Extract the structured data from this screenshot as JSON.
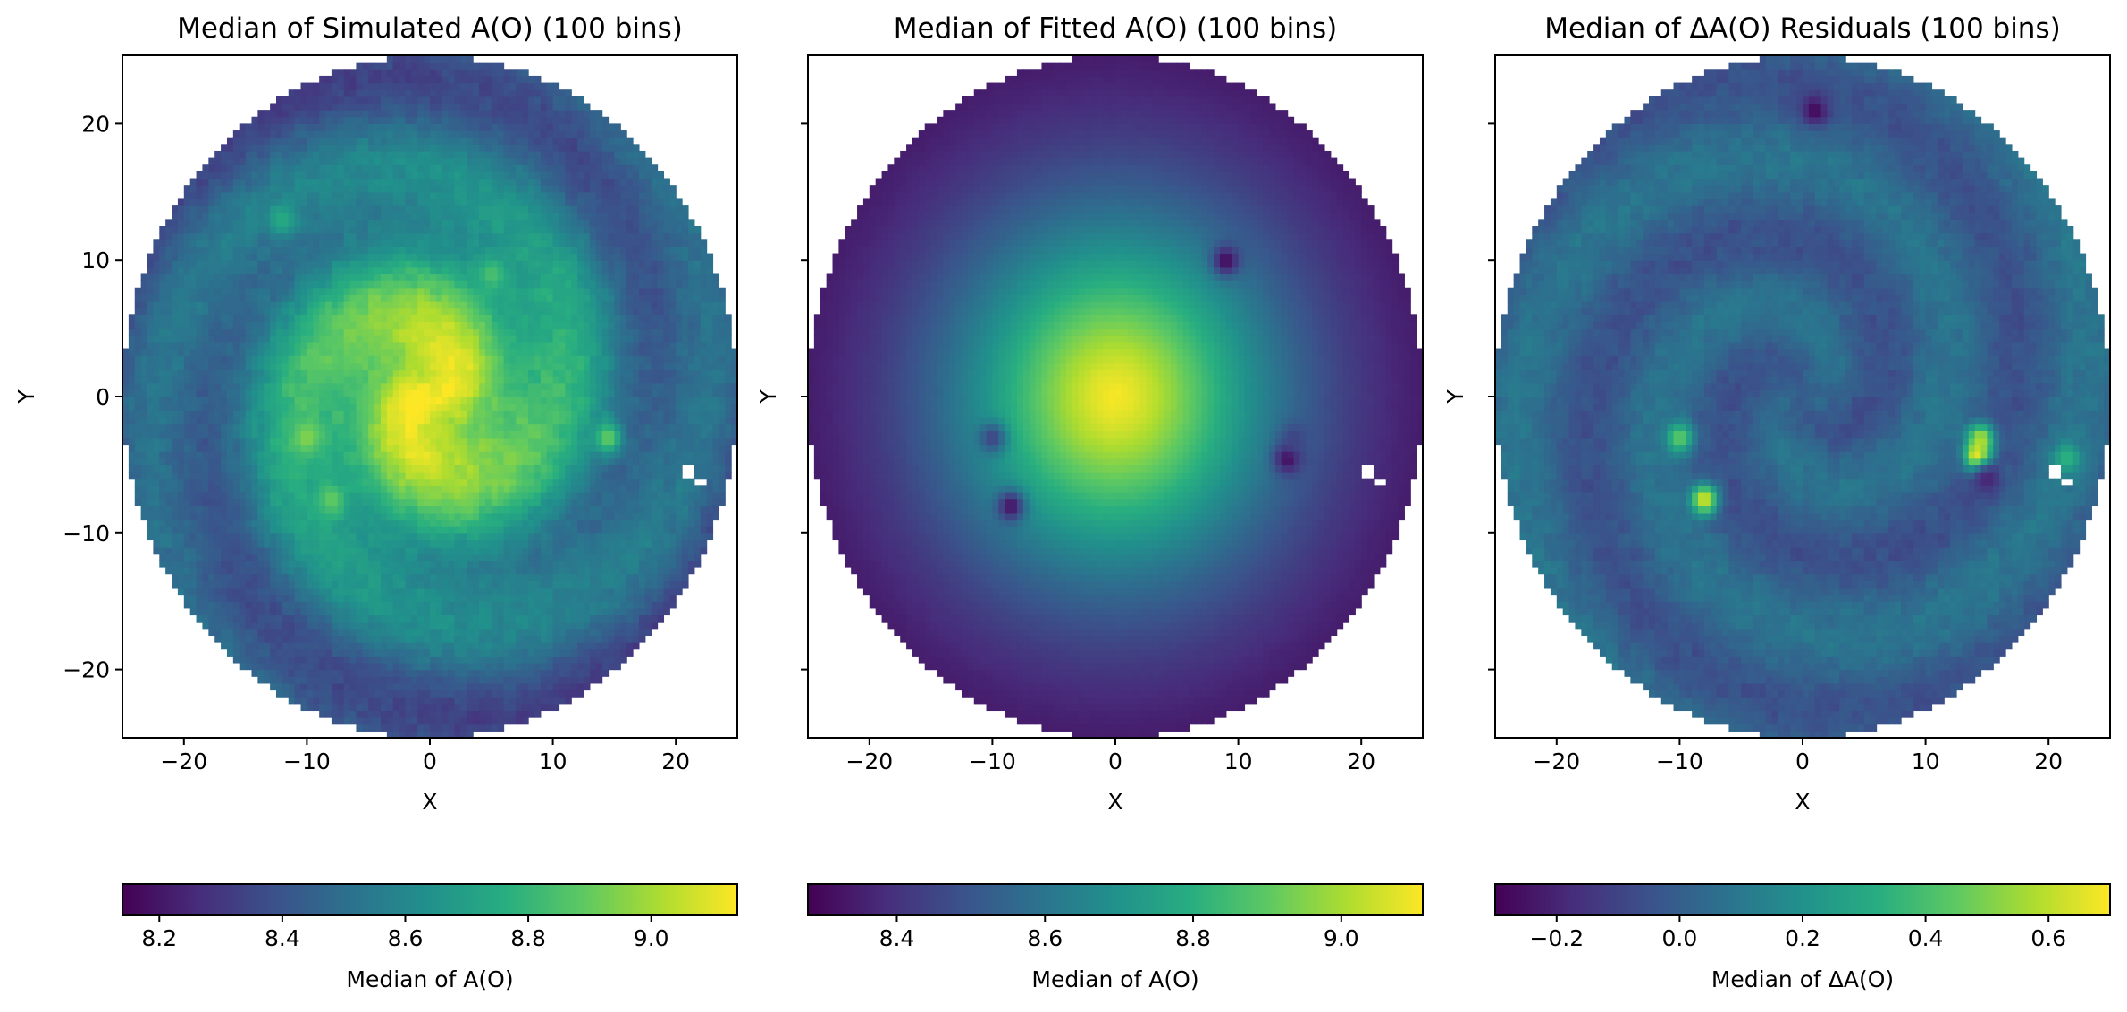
{
  "chart_data": [
    {
      "type": "heatmap",
      "title": "Median of Simulated A(O) (100 bins)",
      "xlabel": "X",
      "ylabel": "Y",
      "xlim": [
        -25,
        25
      ],
      "ylim": [
        -25,
        25
      ],
      "xticks": [
        -20,
        -10,
        0,
        10,
        20
      ],
      "yticks": [
        -20,
        -10,
        0,
        10,
        20
      ],
      "xticklabels": [
        "−20",
        "−10",
        "0",
        "10",
        "20"
      ],
      "yticklabels": [
        "−20",
        "−10",
        "0",
        "10",
        "20"
      ],
      "show_yticklabels": true,
      "bins": 100,
      "disk_radius": 25,
      "colormap": "viridis",
      "colorbar": {
        "label": "Median of A(O)",
        "vmin": 8.14,
        "vmax": 9.14,
        "ticks": [
          8.2,
          8.4,
          8.6,
          8.8,
          9.0
        ],
        "ticklabels": [
          "8.2",
          "8.4",
          "8.6",
          "8.8",
          "9.0"
        ]
      },
      "field": {
        "center_value": 9.12,
        "edge_value": 8.36,
        "profile": "gradient",
        "spiral_arms": 2,
        "arm_amplitude": 0.09,
        "noise": 0.05
      },
      "features": [
        {
          "x": -10,
          "y": -3,
          "value": 8.95
        },
        {
          "x": -8,
          "y": -7.5,
          "value": 8.9
        },
        {
          "x": 14.5,
          "y": -3,
          "value": 8.9
        },
        {
          "x": 5,
          "y": 9,
          "value": 8.85
        },
        {
          "x": -12,
          "y": 13,
          "value": 8.75
        }
      ],
      "missing_bins": [
        [
          21,
          -5.5
        ],
        [
          22,
          -6.2
        ]
      ]
    },
    {
      "type": "heatmap",
      "title": "Median of Fitted A(O) (100 bins)",
      "xlabel": "X",
      "ylabel": "Y",
      "xlim": [
        -25,
        25
      ],
      "ylim": [
        -25,
        25
      ],
      "xticks": [
        -20,
        -10,
        0,
        10,
        20
      ],
      "yticks": [
        -20,
        -10,
        0,
        10,
        20
      ],
      "xticklabels": [
        "−20",
        "−10",
        "0",
        "10",
        "20"
      ],
      "yticklabels": [
        "−20",
        "−10",
        "0",
        "10",
        "20"
      ],
      "show_yticklabels": false,
      "bins": 100,
      "disk_radius": 25,
      "colormap": "viridis",
      "colorbar": {
        "label": "Median of A(O)",
        "vmin": 8.28,
        "vmax": 9.11,
        "ticks": [
          8.4,
          8.6,
          8.8,
          9.0
        ],
        "ticklabels": [
          "8.4",
          "8.6",
          "8.8",
          "9.0"
        ]
      },
      "field": {
        "center_value": 9.1,
        "edge_value": 8.29,
        "profile": "gradient",
        "spiral_arms": 0,
        "arm_amplitude": 0.0,
        "noise": 0.004
      },
      "features": [
        {
          "x": 9,
          "y": 10,
          "value": 8.3
        },
        {
          "x": 14,
          "y": -4.5,
          "value": 8.3
        },
        {
          "x": -8.5,
          "y": -8,
          "value": 8.32
        },
        {
          "x": -10,
          "y": -3,
          "value": 8.45
        },
        {
          "x": 14.5,
          "y": -3,
          "value": 8.45
        }
      ],
      "missing_bins": [
        [
          20.5,
          -5.5
        ],
        [
          21.5,
          -6.2
        ]
      ]
    },
    {
      "type": "heatmap",
      "title": "Median of ΔA(O) Residuals (100 bins)",
      "xlabel": "X",
      "ylabel": "Y",
      "xlim": [
        -25,
        25
      ],
      "ylim": [
        -25,
        25
      ],
      "xticks": [
        -20,
        -10,
        0,
        10,
        20
      ],
      "yticks": [
        -20,
        -10,
        0,
        10,
        20
      ],
      "xticklabels": [
        "−20",
        "−10",
        "0",
        "10",
        "20"
      ],
      "yticklabels": [
        "−20",
        "−10",
        "0",
        "10",
        "20"
      ],
      "show_yticklabels": false,
      "bins": 100,
      "disk_radius": 25,
      "colormap": "viridis",
      "colorbar": {
        "label": "Median of ΔA(O)",
        "vmin": -0.3,
        "vmax": 0.7,
        "ticks": [
          -0.2,
          0.0,
          0.2,
          0.4,
          0.6
        ],
        "ticklabels": [
          "−0.2",
          "0.0",
          "0.2",
          "0.4",
          "0.6"
        ]
      },
      "field": {
        "center_value": 0.01,
        "edge_value": 0.02,
        "profile": "flat",
        "spiral_arms": 2,
        "arm_amplitude": 0.07,
        "noise": 0.045
      },
      "features": [
        {
          "x": -10,
          "y": -3,
          "value": 0.45
        },
        {
          "x": -8,
          "y": -7.5,
          "value": 0.65
        },
        {
          "x": 14.5,
          "y": -3,
          "value": 0.55
        },
        {
          "x": 14.2,
          "y": -4.3,
          "value": 0.7
        },
        {
          "x": 21.5,
          "y": -4.5,
          "value": 0.35
        },
        {
          "x": 1,
          "y": 21,
          "value": -0.28
        },
        {
          "x": 15,
          "y": -6,
          "value": -0.2
        }
      ],
      "missing_bins": [
        [
          20.5,
          -5.5
        ],
        [
          21.5,
          -6.2
        ]
      ]
    }
  ]
}
